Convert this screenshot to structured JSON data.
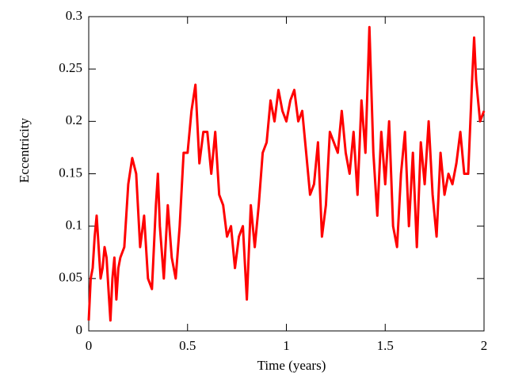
{
  "chart_data": {
    "type": "line",
    "x_label": "Time (years)",
    "y_label": "Eccentricity",
    "x": [
      0,
      0.01,
      0.02,
      0.03,
      0.04,
      0.05,
      0.06,
      0.07,
      0.08,
      0.09,
      0.1,
      0.11,
      0.12,
      0.13,
      0.14,
      0.15,
      0.16,
      0.18,
      0.2,
      0.22,
      0.24,
      0.26,
      0.28,
      0.3,
      0.32,
      0.34,
      0.35,
      0.36,
      0.38,
      0.4,
      0.42,
      0.44,
      0.46,
      0.48,
      0.5,
      0.52,
      0.54,
      0.56,
      0.58,
      0.6,
      0.62,
      0.64,
      0.66,
      0.68,
      0.7,
      0.72,
      0.74,
      0.76,
      0.78,
      0.8,
      0.82,
      0.84,
      0.86,
      0.88,
      0.9,
      0.92,
      0.94,
      0.96,
      0.98,
      1,
      1.02,
      1.04,
      1.06,
      1.08,
      1.1,
      1.12,
      1.14,
      1.16,
      1.18,
      1.2,
      1.22,
      1.24,
      1.26,
      1.28,
      1.3,
      1.32,
      1.34,
      1.36,
      1.38,
      1.4,
      1.42,
      1.44,
      1.46,
      1.48,
      1.5,
      1.52,
      1.54,
      1.56,
      1.58,
      1.6,
      1.62,
      1.64,
      1.66,
      1.68,
      1.7,
      1.72,
      1.74,
      1.76,
      1.78,
      1.8,
      1.82,
      1.84,
      1.86,
      1.88,
      1.9,
      1.92,
      1.94,
      1.95,
      1.96,
      1.98,
      2
    ],
    "series": [
      {
        "color": "#ff0000",
        "values": [
          0.01,
          0.05,
          0.06,
          0.09,
          0.11,
          0.08,
          0.05,
          0.06,
          0.08,
          0.07,
          0.04,
          0.01,
          0.05,
          0.07,
          0.03,
          0.06,
          0.07,
          0.08,
          0.14,
          0.165,
          0.15,
          0.08,
          0.11,
          0.05,
          0.04,
          0.12,
          0.15,
          0.1,
          0.05,
          0.12,
          0.07,
          0.05,
          0.1,
          0.17,
          0.17,
          0.21,
          0.235,
          0.16,
          0.19,
          0.19,
          0.15,
          0.19,
          0.13,
          0.12,
          0.09,
          0.1,
          0.06,
          0.09,
          0.1,
          0.03,
          0.12,
          0.08,
          0.12,
          0.17,
          0.18,
          0.22,
          0.2,
          0.23,
          0.21,
          0.2,
          0.22,
          0.23,
          0.2,
          0.21,
          0.17,
          0.13,
          0.14,
          0.18,
          0.09,
          0.12,
          0.19,
          0.18,
          0.17,
          0.21,
          0.17,
          0.15,
          0.19,
          0.13,
          0.22,
          0.17,
          0.29,
          0.17,
          0.11,
          0.19,
          0.14,
          0.2,
          0.1,
          0.08,
          0.15,
          0.19,
          0.1,
          0.17,
          0.08,
          0.18,
          0.14,
          0.2,
          0.13,
          0.09,
          0.17,
          0.13,
          0.15,
          0.14,
          0.16,
          0.19,
          0.15,
          0.15,
          0.24,
          0.28,
          0.24,
          0.2,
          0.21
        ]
      }
    ],
    "xlim": [
      0,
      2
    ],
    "xticks": [
      0,
      0.5,
      1,
      1.5,
      2
    ],
    "ylim": [
      0,
      0.3
    ],
    "yticks": [
      0,
      0.05,
      0.1,
      0.15,
      0.2,
      0.25,
      0.3
    ]
  }
}
